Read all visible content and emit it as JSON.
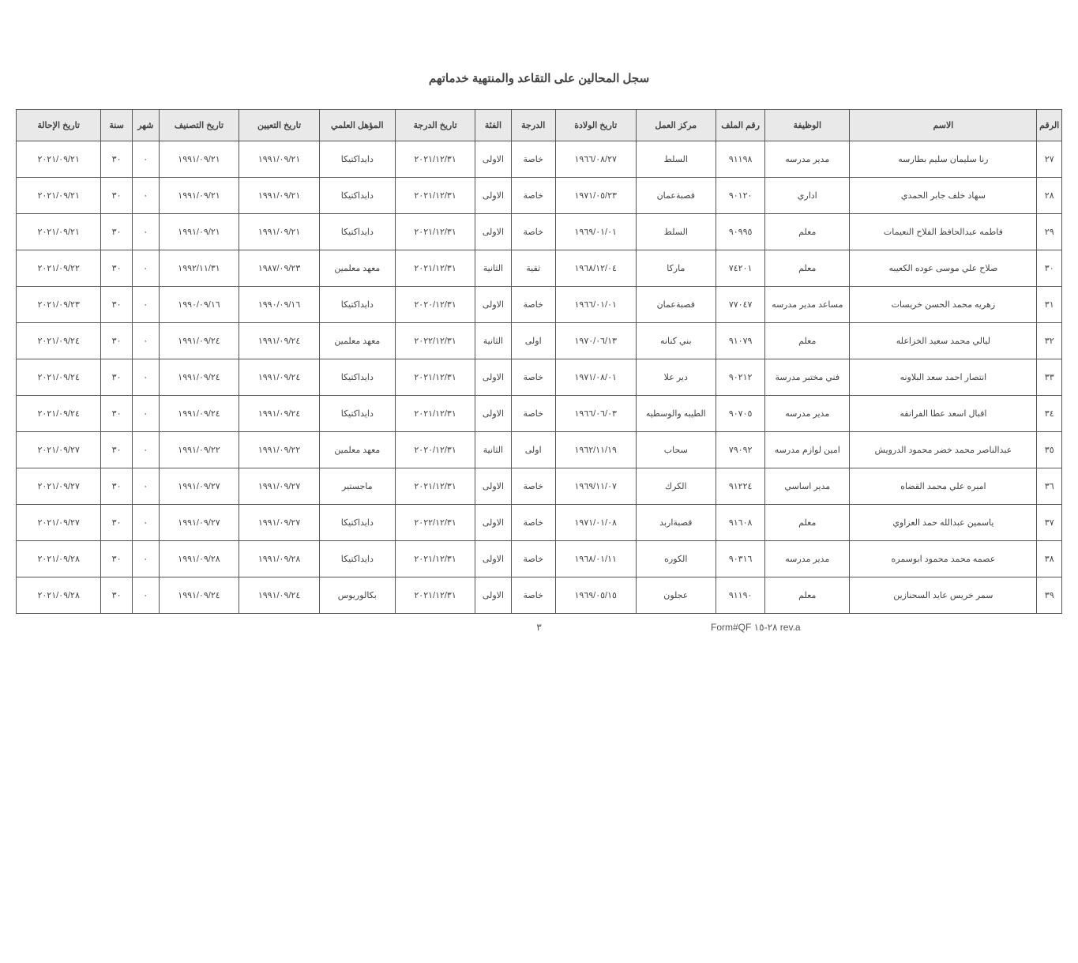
{
  "title": "سجل المحالين على التقاعد والمنتهية خدماتهم",
  "footer": {
    "form": "Form#QF ٢٨-١٥ rev.a",
    "page": "٣"
  },
  "columns": [
    "الرقم",
    "الاسم",
    "الوظيفة",
    "رقم الملف",
    "مركز العمل",
    "تاريخ الولادة",
    "الدرجة",
    "الفئة",
    "تاريخ الدرجة",
    "المؤهل العلمي",
    "تاريخ التعيين",
    "تاريخ التصنيف",
    "شهر",
    "سنة",
    "تاريخ الإحالة"
  ],
  "rows": [
    {
      "n": "٢٧",
      "name": "رنا سليمان سليم بطارسه",
      "job": "مدير مدرسه",
      "file": "٩١١٩٨",
      "center": "السلط",
      "birth": "١٩٦٦/٠٨/٢٧",
      "grade": "خاصة",
      "cat": "الاولى",
      "raise": "٢٠٢١/١٢/٣١",
      "qual": "دايداكتيكا",
      "appt": "١٩٩١/٠٩/٢١",
      "class": "١٩٩١/٠٩/٢١",
      "m": "٠",
      "y": "٣٠",
      "ref": "٢٠٢١/٠٩/٢١"
    },
    {
      "n": "٢٨",
      "name": "سهاد خلف جابر الحمدي",
      "job": "اداري",
      "file": "٩٠١٢٠",
      "center": "قصبةعمان",
      "birth": "١٩٧١/٠٥/٢٣",
      "grade": "خاصة",
      "cat": "الاولى",
      "raise": "٢٠٢١/١٢/٣١",
      "qual": "دايداكتيكا",
      "appt": "١٩٩١/٠٩/٢١",
      "class": "١٩٩١/٠٩/٢١",
      "m": "٠",
      "y": "٣٠",
      "ref": "٢٠٢١/٠٩/٢١"
    },
    {
      "n": "٢٩",
      "name": "فاطمه عبدالحافظ الفلاح النعيمات",
      "job": "معلم",
      "file": "٩٠٩٩٥",
      "center": "السلط",
      "birth": "١٩٦٩/٠١/٠١",
      "grade": "خاصة",
      "cat": "الاولى",
      "raise": "٢٠٢١/١٢/٣١",
      "qual": "دايداكتيكا",
      "appt": "١٩٩١/٠٩/٢١",
      "class": "١٩٩١/٠٩/٢١",
      "m": "٠",
      "y": "٣٠",
      "ref": "٢٠٢١/٠٩/٢١"
    },
    {
      "n": "٣٠",
      "name": "صلاح علي موسى عوده الكعيبه",
      "job": "معلم",
      "file": "٧٤٢٠١",
      "center": "ماركا",
      "birth": "١٩٦٨/١٢/٠٤",
      "grade": "ثقية",
      "cat": "الثانية",
      "raise": "٢٠٢١/١٢/٣١",
      "qual": "معهد معلمين",
      "appt": "١٩٨٧/٠٩/٢٣",
      "class": "١٩٩٢/١١/٣١",
      "m": "٠",
      "y": "٣٠",
      "ref": "٢٠٢١/٠٩/٢٢"
    },
    {
      "n": "٣١",
      "name": "زهريه محمد الحسن خريسات",
      "job": "مساعد مدير مدرسه",
      "file": "٧٧٠٤٧",
      "center": "قصبةعمان",
      "birth": "١٩٦٦/٠١/٠١",
      "grade": "خاصة",
      "cat": "الاولى",
      "raise": "٢٠٢٠/١٢/٣١",
      "qual": "دايداكتيكا",
      "appt": "١٩٩٠/٠٩/١٦",
      "class": "١٩٩٠/٠٩/١٦",
      "m": "٠",
      "y": "٣٠",
      "ref": "٢٠٢١/٠٩/٢٣"
    },
    {
      "n": "٣٢",
      "name": "ليالي محمد سعيد الخزاعله",
      "job": "معلم",
      "file": "٩١٠٧٩",
      "center": "بني كنانه",
      "birth": "١٩٧٠/٠٦/١٣",
      "grade": "اولى",
      "cat": "الثانية",
      "raise": "٢٠٢٢/١٢/٣١",
      "qual": "معهد معلمين",
      "appt": "١٩٩١/٠٩/٢٤",
      "class": "١٩٩١/٠٩/٢٤",
      "m": "٠",
      "y": "٣٠",
      "ref": "٢٠٢١/٠٩/٢٤"
    },
    {
      "n": "٣٣",
      "name": "انتصار احمد سعد البلاونه",
      "job": "فني مختبر مدرسة",
      "file": "٩٠٢١٢",
      "center": "دير علا",
      "birth": "١٩٧١/٠٨/٠١",
      "grade": "خاصة",
      "cat": "الاولى",
      "raise": "٢٠٢١/١٢/٣١",
      "qual": "دايداكتيكا",
      "appt": "١٩٩١/٠٩/٢٤",
      "class": "١٩٩١/٠٩/٢٤",
      "m": "٠",
      "y": "٣٠",
      "ref": "٢٠٢١/٠٩/٢٤"
    },
    {
      "n": "٣٤",
      "name": "اقبال اسعد عطا الفرانقه",
      "job": "مدير مدرسه",
      "file": "٩٠٧٠٥",
      "center": "الطيبه والوسطيه",
      "birth": "١٩٦٦/٠٦/٠٣",
      "grade": "خاصة",
      "cat": "الاولى",
      "raise": "٢٠٢١/١٢/٣١",
      "qual": "دايداكتيكا",
      "appt": "١٩٩١/٠٩/٢٤",
      "class": "١٩٩١/٠٩/٢٤",
      "m": "٠",
      "y": "٣٠",
      "ref": "٢٠٢١/٠٩/٢٤"
    },
    {
      "n": "٣٥",
      "name": "عبدالناصر محمد خضر محمود الدرويش",
      "job": "امين لوازم مدرسه",
      "file": "٧٩٠٩٢",
      "center": "سحاب",
      "birth": "١٩٦٢/١١/١٩",
      "grade": "اولى",
      "cat": "الثانية",
      "raise": "٢٠٢٠/١٢/٣١",
      "qual": "معهد معلمين",
      "appt": "١٩٩١/٠٩/٢٢",
      "class": "١٩٩١/٠٩/٢٢",
      "m": "٠",
      "y": "٣٠",
      "ref": "٢٠٢١/٠٩/٢٧"
    },
    {
      "n": "٣٦",
      "name": "اميره علي محمد القضاه",
      "job": "مدير اساسي",
      "file": "٩١٢٢٤",
      "center": "الكرك",
      "birth": "١٩٦٩/١١/٠٧",
      "grade": "خاصة",
      "cat": "الاولى",
      "raise": "٢٠٢١/١٢/٣١",
      "qual": "ماجستير",
      "appt": "١٩٩١/٠٩/٢٧",
      "class": "١٩٩١/٠٩/٢٧",
      "m": "٠",
      "y": "٣٠",
      "ref": "٢٠٢١/٠٩/٢٧"
    },
    {
      "n": "٣٧",
      "name": "ياسمين عبدالله حمد العزاوي",
      "job": "معلم",
      "file": "٩١٦٠٨",
      "center": "قصبةاربد",
      "birth": "١٩٧١/٠١/٠٨",
      "grade": "خاصة",
      "cat": "الاولى",
      "raise": "٢٠٢٢/١٢/٣١",
      "qual": "دايداكتيكا",
      "appt": "١٩٩١/٠٩/٢٧",
      "class": "١٩٩١/٠٩/٢٧",
      "m": "٠",
      "y": "٣٠",
      "ref": "٢٠٢١/٠٩/٢٧"
    },
    {
      "n": "٣٨",
      "name": "عصمه محمد محمود ابوسمره",
      "job": "مدير مدرسه",
      "file": "٩٠٣١٦",
      "center": "الكوره",
      "birth": "١٩٦٨/٠١/١١",
      "grade": "خاصة",
      "cat": "الاولى",
      "raise": "٢٠٢١/١٢/٣١",
      "qual": "دايداكتيكا",
      "appt": "١٩٩١/٠٩/٢٨",
      "class": "١٩٩١/٠٩/٢٨",
      "m": "٠",
      "y": "٣٠",
      "ref": "٢٠٢١/٠٩/٢٨"
    },
    {
      "n": "٣٩",
      "name": "سمر خريس عايد السحنازين",
      "job": "معلم",
      "file": "٩١١٩٠",
      "center": "عجلون",
      "birth": "١٩٦٩/٠٥/١٥",
      "grade": "خاصة",
      "cat": "الاولى",
      "raise": "٢٠٢١/١٢/٣١",
      "qual": "بكالوريوس",
      "appt": "١٩٩١/٠٩/٢٤",
      "class": "١٩٩١/٠٩/٢٤",
      "m": "٠",
      "y": "٣٠",
      "ref": "٢٠٢١/٠٩/٢٨"
    }
  ]
}
